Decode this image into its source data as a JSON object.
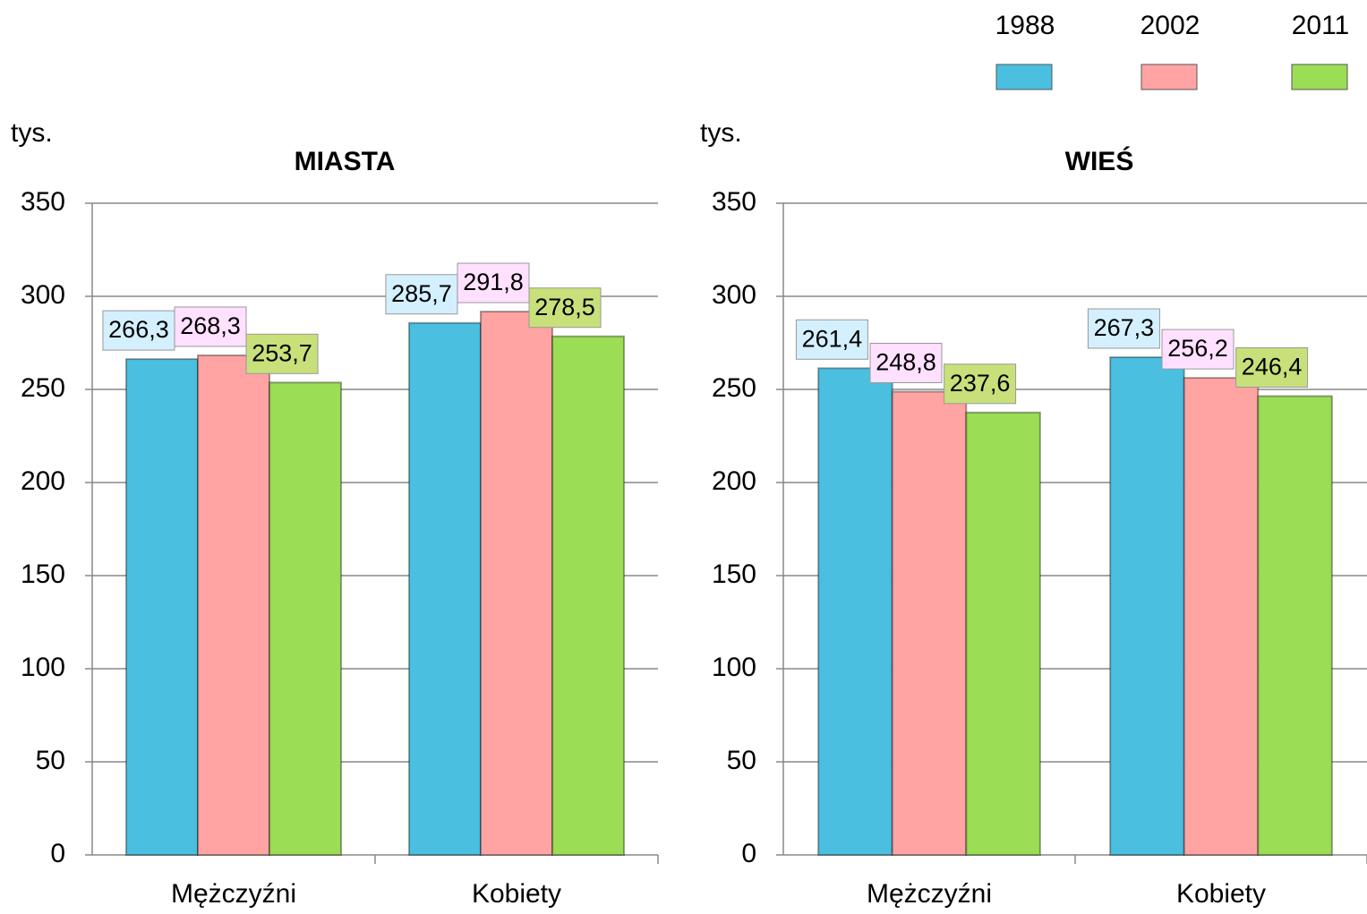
{
  "legend": {
    "names": [
      "1988",
      "2002",
      "2011"
    ],
    "colors": [
      "#4bbfe0",
      "#ffa3a3",
      "#9bdd55"
    ]
  },
  "chart_data": [
    {
      "type": "bar",
      "title": "MIASTA",
      "y_label": "tys.",
      "categories": [
        "Mężczyźni",
        "Kobiety"
      ],
      "series": [
        {
          "values": [
            266.3,
            285.7
          ],
          "value_labels": [
            "266,3",
            "285,7"
          ]
        },
        {
          "values": [
            268.3,
            291.8
          ],
          "value_labels": [
            "268,3",
            "291,8"
          ]
        },
        {
          "values": [
            253.7,
            278.5
          ],
          "value_labels": [
            "253,7",
            "278,5"
          ]
        }
      ],
      "ylim": [
        0,
        350
      ],
      "yticks": [
        0,
        50,
        100,
        150,
        200,
        250,
        300,
        350
      ],
      "grid": true
    },
    {
      "type": "bar",
      "title": "WIEŚ",
      "y_label": "tys.",
      "categories": [
        "Mężczyźni",
        "Kobiety"
      ],
      "series": [
        {
          "values": [
            261.4,
            267.3
          ],
          "value_labels": [
            "261,4",
            "267,3"
          ]
        },
        {
          "values": [
            248.8,
            256.2
          ],
          "value_labels": [
            "248,8",
            "256,2"
          ]
        },
        {
          "values": [
            237.6,
            246.4
          ],
          "value_labels": [
            "237,6",
            "246,4"
          ]
        }
      ],
      "ylim": [
        0,
        350
      ],
      "yticks": [
        0,
        50,
        100,
        150,
        200,
        250,
        300,
        350
      ],
      "grid": true
    }
  ]
}
